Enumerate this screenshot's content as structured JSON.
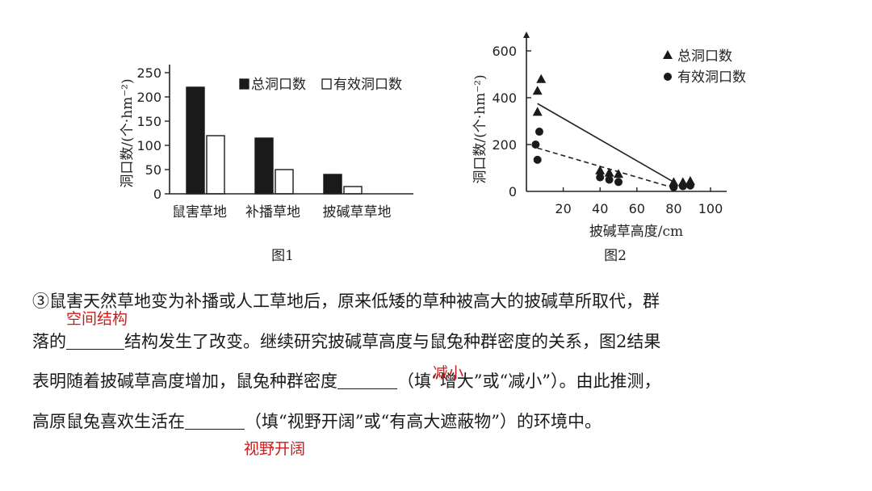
{
  "chart_data": [
    {
      "type": "bar",
      "caption": "图1",
      "ylabel": "洞口数/(个·hm⁻²)",
      "ylim": [
        0,
        250
      ],
      "yticks": [
        0,
        50,
        100,
        150,
        200,
        250
      ],
      "categories": [
        "鼠害草地",
        "补播草地",
        "披碱草草地"
      ],
      "legend_position": "top-right",
      "series": [
        {
          "name": "总洞口数",
          "values": [
            220,
            115,
            40
          ],
          "fill": "#1a1a1a"
        },
        {
          "name": "有效洞口数",
          "values": [
            120,
            50,
            15
          ],
          "fill": "#ffffff"
        }
      ]
    },
    {
      "type": "scatter",
      "caption": "图2",
      "xlabel": "披碱草高度/cm",
      "ylabel": "洞口数/(个·hm⁻²)",
      "xlim": [
        0,
        100
      ],
      "ylim": [
        0,
        600
      ],
      "xticks": [
        20,
        40,
        60,
        80,
        100
      ],
      "yticks": [
        0,
        200,
        400,
        600
      ],
      "legend_position": "top-right",
      "series": [
        {
          "name": "总洞口数",
          "marker": "triangle",
          "points": [
            [
              6,
              430
            ],
            [
              8,
              480
            ],
            [
              6,
              340
            ],
            [
              40,
              90
            ],
            [
              45,
              80
            ],
            [
              50,
              75
            ],
            [
              80,
              40
            ],
            [
              85,
              40
            ],
            [
              89,
              45
            ]
          ],
          "trend": {
            "style": "solid",
            "from": [
              6,
              375
            ],
            "to": [
              80,
              40
            ]
          }
        },
        {
          "name": "有效洞口数",
          "marker": "circle",
          "points": [
            [
              7,
              255
            ],
            [
              5,
              200
            ],
            [
              6,
              135
            ],
            [
              40,
              60
            ],
            [
              45,
              50
            ],
            [
              50,
              40
            ],
            [
              80,
              18
            ],
            [
              85,
              22
            ],
            [
              89,
              25
            ]
          ],
          "trend": {
            "style": "dashed",
            "from": [
              6,
              185
            ],
            "to": [
              80,
              15
            ]
          }
        }
      ]
    }
  ],
  "question": {
    "line1": "③鼠害天然草地变为补播或人工草地后，原来低矮的草种被高大的披碱草所取代，群",
    "line2_a": "落的",
    "line2_b": "结构发生了改变。继续研究披碱草高度与鼠兔种群密度的关系，图2结果",
    "line3_a": "表明随着披碱草高度增加，鼠兔种群密度",
    "line3_b": "（填“增大”或“减小”）。由此推测，",
    "line4_a": "高原鼠兔喜欢生活在",
    "line4_b": "（填“视野开阔”或“有高大遮蔽物”）的环境中。"
  },
  "answers": {
    "blank1": "空间结构",
    "blank2": "减小",
    "blank3": "视野开阔"
  }
}
